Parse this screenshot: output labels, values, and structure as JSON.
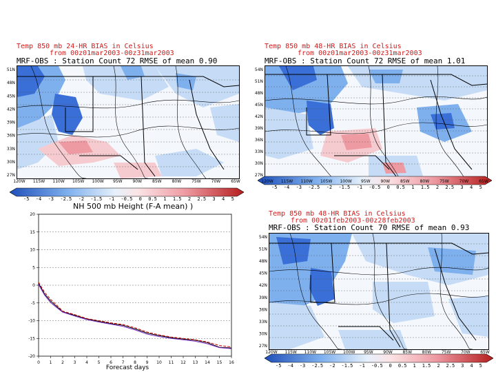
{
  "maps": [
    {
      "id": "tl",
      "title_line1": "Temp 850 mb 24-HR BIAS in Celsius",
      "title_line2": "from 00z01mar2003-00z31mar2003",
      "subtitle": "MRF-OBS : Station Count 72 RMSE of mean 0.90",
      "lat_labels": [
        "51N",
        "48N",
        "45N",
        "42N",
        "39N",
        "36N",
        "33N",
        "30N",
        "27N"
      ],
      "lon_labels": [
        "120W",
        "115W",
        "110W",
        "105W",
        "100W",
        "95W",
        "90W",
        "85W",
        "80W",
        "75W",
        "70W",
        "65W"
      ],
      "colorbar_labels": [
        "-5",
        "-4",
        "-3",
        "-2.5",
        "-2",
        "-1.5",
        "-1",
        "-0.5",
        "0",
        "0.5",
        "1",
        "1.5",
        "2",
        "2.5",
        "3",
        "4",
        "5"
      ]
    },
    {
      "id": "tr",
      "title_line1": "Temp 850 mb 48-HR BIAS in Celsius",
      "title_line2": "from 00z01mar2003-00z31mar2003",
      "subtitle": "MRF-OBS : Station Count 72 RMSE of mean 1.01",
      "lat_labels": [
        "54N",
        "51N",
        "48N",
        "45N",
        "42N",
        "39N",
        "36N",
        "33N",
        "30N",
        "27N"
      ],
      "lon_labels": [
        "120W",
        "115W",
        "110W",
        "105W",
        "100W",
        "95W",
        "90W",
        "85W",
        "80W",
        "75W",
        "70W",
        "65W"
      ],
      "colorbar_labels": [
        "-5",
        "-4",
        "-3",
        "-2.5",
        "-2",
        "-1.5",
        "-1",
        "-0.5",
        "0",
        "0.5",
        "1",
        "1.5",
        "2",
        "2.5",
        "3",
        "4",
        "5"
      ]
    },
    {
      "id": "br",
      "title_line1": "Temp 850 mb 48-HR BIAS in Celsius",
      "title_line2": "from 00z01feb2003-00z28feb2003",
      "subtitle": "MRF-OBS : Station Count 70 RMSE of mean 0.93",
      "lat_labels": [
        "54N",
        "51N",
        "48N",
        "45N",
        "42N",
        "39N",
        "36N",
        "33N",
        "30N",
        "27N"
      ],
      "lon_labels": [
        "120W",
        "115W",
        "110W",
        "105W",
        "100W",
        "95W",
        "90W",
        "85W",
        "80W",
        "75W",
        "70W",
        "65W"
      ],
      "colorbar_labels": [
        "-5",
        "-4",
        "-3",
        "-2.5",
        "-2",
        "-1.5",
        "-1",
        "-0.5",
        "0",
        "0.5",
        "1",
        "1.5",
        "2",
        "2.5",
        "3",
        "4",
        "5"
      ]
    }
  ],
  "colors": {
    "neg_dark": "#3a6fd8",
    "neg_mid": "#7fb0ee",
    "neg_light": "#c6dcf6",
    "neutral": "#f2f5fa",
    "pos_light": "#f6cbcf",
    "pos_mid": "#ee9aa2",
    "pos_dark": "#d23a3a",
    "line_black": "#000000",
    "line_red": "#cc0000",
    "line_purple": "#7a2ac8"
  },
  "chart_data": {
    "type": "line",
    "title": "NH 500 mb Height (F-A mean)",
    "title_suffix": ")",
    "xlabel": "Forecast days",
    "ylabel": "",
    "xlim": [
      0,
      16
    ],
    "ylim": [
      -20,
      20
    ],
    "xticks": [
      0,
      1,
      2,
      3,
      4,
      5,
      6,
      7,
      8,
      9,
      10,
      11,
      12,
      13,
      14,
      15,
      16
    ],
    "yticks": [
      -20,
      -15,
      -10,
      -5,
      0,
      5,
      10,
      15,
      20
    ],
    "grid": true,
    "series": [
      {
        "name": "black",
        "color": "#000000",
        "dash": "",
        "x": [
          0,
          0.5,
          1,
          1.5,
          2,
          3,
          4,
          5,
          6,
          7,
          8,
          9,
          10,
          11,
          12,
          13,
          14,
          15,
          16
        ],
        "y": [
          0.5,
          -2.5,
          -4.5,
          -6,
          -7.5,
          -8.5,
          -9.5,
          -10.2,
          -10.8,
          -11.3,
          -12.3,
          -13.5,
          -14.2,
          -14.8,
          -15.2,
          -15.5,
          -16.2,
          -17.5,
          -17.7
        ]
      },
      {
        "name": "red",
        "color": "#cc0000",
        "dash": "4,2",
        "x": [
          0,
          0.5,
          1,
          1.5,
          2,
          3,
          4,
          5,
          6,
          7,
          8,
          9,
          10,
          11,
          12,
          13,
          14,
          15,
          16
        ],
        "y": [
          0.8,
          -2.0,
          -4.0,
          -5.6,
          -7.3,
          -8.3,
          -9.4,
          -10.0,
          -10.6,
          -11.1,
          -12.0,
          -13.2,
          -14.0,
          -14.6,
          -15.0,
          -15.4,
          -16.0,
          -17.0,
          -17.4
        ]
      },
      {
        "name": "purple",
        "color": "#7a2ac8",
        "dash": "",
        "x": [
          0,
          0.5,
          1,
          1.5,
          2,
          3,
          4,
          5,
          6,
          7,
          8,
          9,
          10,
          11,
          12,
          13,
          14,
          15,
          16
        ],
        "y": [
          0.2,
          -2.8,
          -4.9,
          -6.3,
          -7.6,
          -8.7,
          -9.7,
          -10.4,
          -11.0,
          -11.6,
          -12.6,
          -13.8,
          -14.5,
          -15.0,
          -15.4,
          -15.8,
          -16.5,
          -17.6,
          -17.9
        ]
      }
    ]
  }
}
